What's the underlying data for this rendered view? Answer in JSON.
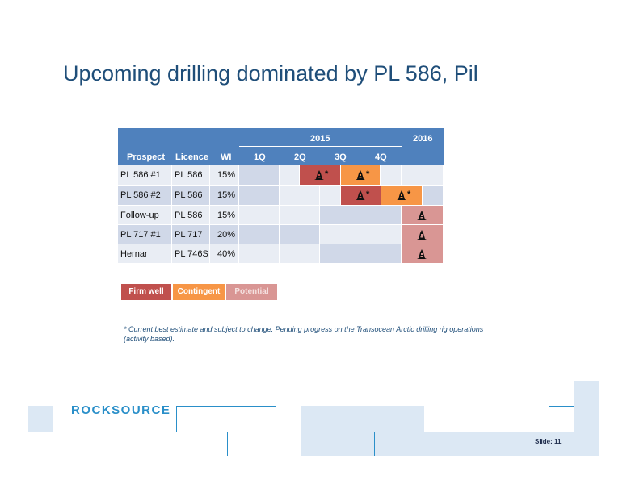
{
  "slide": {
    "title": "Upcoming drilling dominated by PL 586, Pil",
    "footnote": "* Current best estimate and subject to change. Pending progress on the Transocean Arctic drilling rig operations (activity based).",
    "logo": "ROCKSOURCE",
    "slide_number_label": "Slide: 11"
  },
  "colors": {
    "header_blue": "#4f81bd",
    "firm_well": "#c0504d",
    "contingent": "#f79646",
    "potential": "#d99694",
    "row_light": "#e9edf4",
    "row_dark": "#d0d8e8",
    "brand_blue": "#2a8fc9"
  },
  "table": {
    "year_2015": "2015",
    "year_2016": "2016",
    "columns": [
      "Prospect",
      "Licence",
      "WI",
      "1Q",
      "2Q",
      "3Q",
      "4Q"
    ],
    "rows": [
      {
        "prospect": "PL 586 #1",
        "licence": "PL 586",
        "wi": "15%"
      },
      {
        "prospect": "PL 586 #2",
        "licence": "PL 586",
        "wi": "15%"
      },
      {
        "prospect": "Follow-up",
        "licence": "PL 586",
        "wi": "15%"
      },
      {
        "prospect": "PL 717 #1",
        "licence": "PL 717",
        "wi": "20%"
      },
      {
        "prospect": "Hernar",
        "licence": "PL 746S",
        "wi": "40%"
      }
    ],
    "rig_icon": "drilling-rig-icon",
    "star_mark": "*"
  },
  "legend": {
    "firm_well": "Firm well",
    "contingent": "Contingent",
    "potential": "Potential"
  }
}
